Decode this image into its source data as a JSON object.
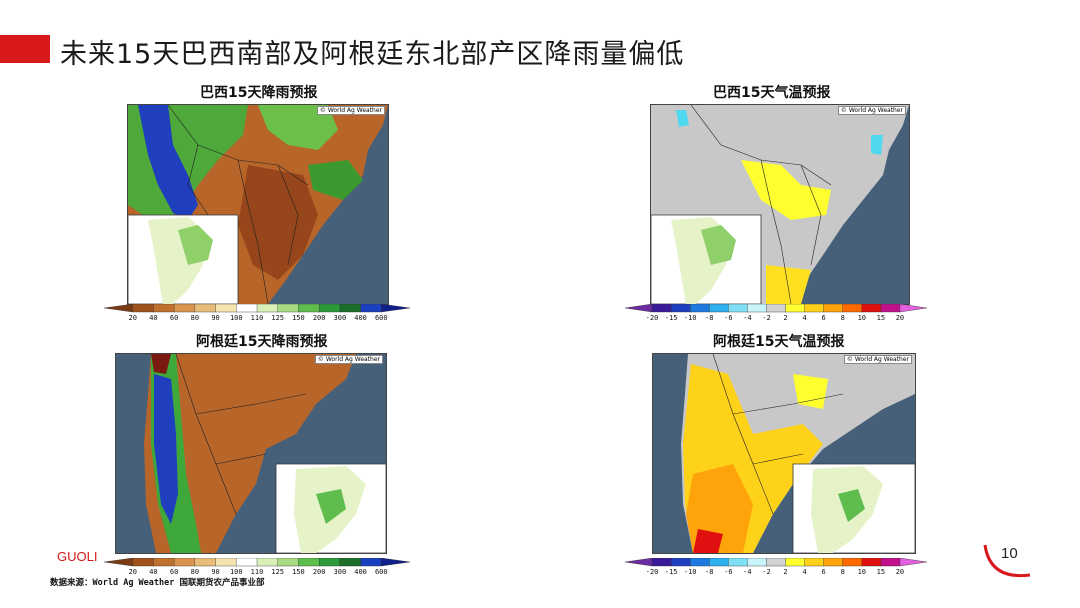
{
  "slide": {
    "title": "未来15天巴西南部及阿根廷东北部产区降雨量偏低",
    "page_number": "10",
    "brand": "GUOLI",
    "source": "数据来源：World Ag Weather 国联期货农产品事业部"
  },
  "panels": {
    "brazil_rain": {
      "title": "巴西15天降雨预报",
      "credit": "© World Ag Weather"
    },
    "brazil_temp": {
      "title": "巴西15天气温预报",
      "credit": "© World Ag Weather"
    },
    "argentina_rain": {
      "title": "阿根廷15天降雨预报",
      "credit": "© World Ag Weather"
    },
    "argentina_temp": {
      "title": "阿根廷15天气温预报",
      "credit": "© World Ag Weather"
    }
  },
  "legends": {
    "rain": {
      "ticks": [
        "20",
        "40",
        "60",
        "80",
        "90",
        "100",
        "110",
        "125",
        "150",
        "200",
        "300",
        "400",
        "600"
      ],
      "colors": [
        "#7a3b14",
        "#a0521d",
        "#c0702f",
        "#d9954d",
        "#e8bd7a",
        "#f5e3b0",
        "#ffffff",
        "#d8f0b8",
        "#a8dc84",
        "#5fbd4e",
        "#2a9a3a",
        "#1c6e2a",
        "#1a3fbf",
        "#10208a"
      ]
    },
    "temp": {
      "ticks": [
        "-20",
        "-15",
        "-10",
        "-8",
        "-6",
        "-4",
        "-2",
        "2",
        "4",
        "6",
        "8",
        "10",
        "15",
        "20"
      ],
      "colors": [
        "#6a2ca0",
        "#3a1a9a",
        "#1f3fbf",
        "#1f7ae0",
        "#2fb0f0",
        "#7fe0f5",
        "#c8f4fa",
        "#d3d3d3",
        "#ffff30",
        "#ffd21a",
        "#ffa30a",
        "#ff6a00",
        "#e01010",
        "#c0108a",
        "#e060e0"
      ]
    }
  }
}
